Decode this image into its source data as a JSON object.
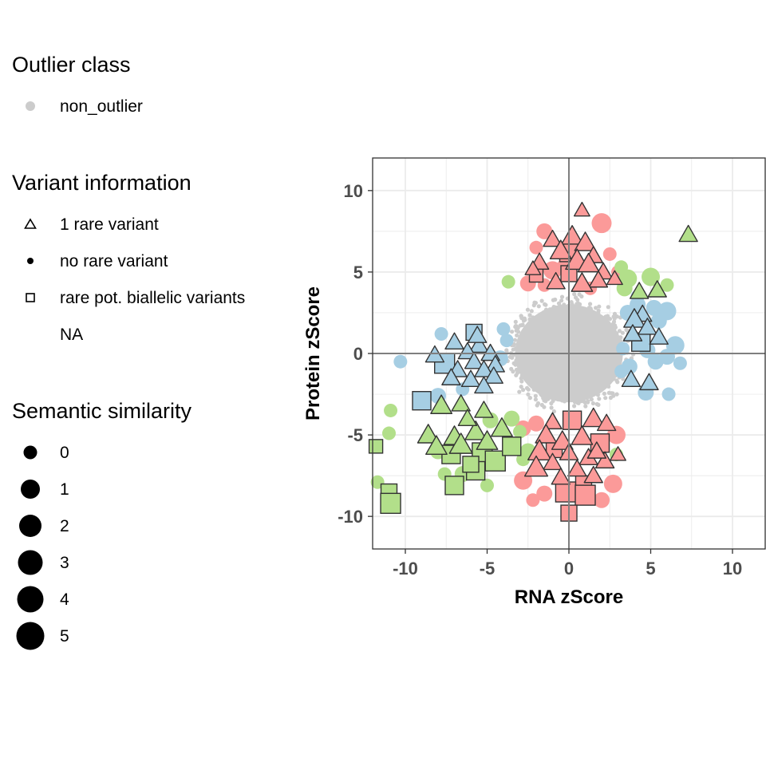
{
  "legend": {
    "outlier_class": {
      "title": "Outlier class",
      "items": [
        {
          "label": "non_outlier",
          "color": "#cccccc"
        }
      ]
    },
    "variant_info": {
      "title": "Variant information",
      "items": [
        {
          "label": "1 rare variant",
          "shape": "triangle"
        },
        {
          "label": "no rare variant",
          "shape": "dot"
        },
        {
          "label": "rare pot. biallelic variants",
          "shape": "square"
        },
        {
          "label": "NA",
          "shape": "none"
        }
      ]
    },
    "semantic_similarity": {
      "title": "Semantic similarity",
      "items": [
        {
          "label": "0",
          "size": 0
        },
        {
          "label": "1",
          "size": 1
        },
        {
          "label": "2",
          "size": 2
        },
        {
          "label": "3",
          "size": 3
        },
        {
          "label": "4",
          "size": 4
        },
        {
          "label": "5",
          "size": 5
        }
      ]
    }
  },
  "chart_data": {
    "type": "scatter",
    "xlabel": "RNA zScore",
    "ylabel": "Protein zScore",
    "xlim": [
      -12,
      12
    ],
    "ylim": [
      -12,
      12
    ],
    "x_ticks": [
      -10,
      -5,
      0,
      5,
      10
    ],
    "y_ticks": [
      -10,
      -5,
      0,
      5,
      10
    ],
    "x_tick_labels": [
      "-10",
      "-5",
      "0",
      "5",
      "10"
    ],
    "y_tick_labels": [
      "-10",
      "-5",
      "0",
      "5",
      "10"
    ],
    "grid": true,
    "reference_lines": {
      "x": 0,
      "y": 0
    },
    "colors": {
      "non_outlier": "#cccccc",
      "protein_outlier": "#fb9a99",
      "rna_outlier": "#a6cee3",
      "rna_protein_outlier": "#b2df8a",
      "outline": "#333333"
    },
    "series": [
      {
        "key": "protein_outlier",
        "points": [
          [
            0.8,
            8.8,
            "triangle",
            1
          ],
          [
            -1.5,
            7.5,
            "dot",
            2
          ],
          [
            2.0,
            8.0,
            "dot",
            4
          ],
          [
            -1.0,
            7.0,
            "triangle",
            2
          ],
          [
            0.2,
            7.2,
            "triangle",
            3
          ],
          [
            1.0,
            6.8,
            "triangle",
            3
          ],
          [
            -0.5,
            6.3,
            "triangle",
            3
          ],
          [
            0.0,
            6.2,
            "square",
            3
          ],
          [
            1.5,
            6.0,
            "triangle",
            2
          ],
          [
            -1.8,
            5.6,
            "triangle",
            2
          ],
          [
            0.5,
            5.7,
            "triangle",
            4
          ],
          [
            -2.2,
            5.2,
            "triangle",
            1
          ],
          [
            1.2,
            5.5,
            "triangle",
            3
          ],
          [
            2.1,
            5.0,
            "triangle",
            2
          ],
          [
            -1.0,
            5.1,
            "dot",
            3
          ],
          [
            -2.0,
            4.8,
            "square",
            1
          ],
          [
            0.0,
            4.9,
            "square",
            2
          ],
          [
            1.8,
            4.5,
            "triangle",
            2
          ],
          [
            -2.5,
            4.3,
            "dot",
            2
          ],
          [
            -0.8,
            4.4,
            "triangle",
            2
          ],
          [
            0.8,
            4.3,
            "triangle",
            3
          ],
          [
            2.8,
            4.6,
            "triangle",
            1
          ],
          [
            -1.5,
            4.2,
            "dot",
            1
          ],
          [
            1.3,
            4.0,
            "dot",
            1
          ],
          [
            -2.0,
            6.5,
            "dot",
            1
          ],
          [
            -0.3,
            5.4,
            "dot",
            1
          ],
          [
            2.5,
            6.1,
            "dot",
            1
          ],
          [
            3.0,
            5.0,
            "dot",
            1
          ],
          [
            -1.0,
            -4.2,
            "triangle",
            2
          ],
          [
            -2.0,
            -4.3,
            "dot",
            2
          ],
          [
            0.2,
            -4.1,
            "square",
            3
          ],
          [
            1.5,
            -4.0,
            "triangle",
            3
          ],
          [
            2.3,
            -4.3,
            "triangle",
            2
          ],
          [
            -2.8,
            -4.6,
            "dot",
            2
          ],
          [
            -1.4,
            -5.0,
            "triangle",
            3
          ],
          [
            0.8,
            -5.1,
            "triangle",
            3
          ],
          [
            -0.4,
            -5.4,
            "triangle",
            3
          ],
          [
            1.9,
            -5.5,
            "square",
            3
          ],
          [
            2.9,
            -5.0,
            "dot",
            3
          ],
          [
            -1.8,
            -6.0,
            "triangle",
            4
          ],
          [
            0.0,
            -6.1,
            "triangle",
            2
          ],
          [
            1.2,
            -6.4,
            "triangle",
            2
          ],
          [
            -1.0,
            -6.7,
            "triangle",
            2
          ],
          [
            2.2,
            -6.6,
            "triangle",
            2
          ],
          [
            -2.0,
            -7.0,
            "triangle",
            4
          ],
          [
            0.5,
            -7.1,
            "triangle",
            2
          ],
          [
            1.5,
            -7.5,
            "triangle",
            2
          ],
          [
            -0.5,
            -7.6,
            "triangle",
            2
          ],
          [
            -2.8,
            -7.8,
            "dot",
            3
          ],
          [
            0.9,
            -8.0,
            "square",
            2
          ],
          [
            -0.2,
            -8.5,
            "square",
            4
          ],
          [
            1.0,
            -8.7,
            "square",
            4
          ],
          [
            -1.5,
            -8.6,
            "dot",
            2
          ],
          [
            2.7,
            -8.0,
            "dot",
            3
          ],
          [
            0.0,
            -9.8,
            "square",
            2
          ],
          [
            -2.2,
            -9.0,
            "dot",
            1
          ],
          [
            2.0,
            -9.0,
            "dot",
            2
          ],
          [
            3.0,
            -6.2,
            "triangle",
            1
          ],
          [
            -0.9,
            -5.9,
            "square",
            2
          ],
          [
            1.7,
            -6.0,
            "triangle",
            2
          ]
        ]
      },
      {
        "key": "rna_outlier",
        "points": [
          [
            -7.0,
            0.7,
            "triangle",
            2
          ],
          [
            -5.5,
            0.5,
            "triangle",
            2
          ],
          [
            -8.2,
            -0.1,
            "triangle",
            2
          ],
          [
            -6.2,
            0.1,
            "triangle",
            2
          ],
          [
            -4.8,
            0.0,
            "triangle",
            2
          ],
          [
            -7.6,
            -0.6,
            "square",
            4
          ],
          [
            -5.8,
            -0.5,
            "triangle",
            2
          ],
          [
            -4.5,
            -0.7,
            "triangle",
            2
          ],
          [
            -6.8,
            -1.0,
            "triangle",
            2
          ],
          [
            -5.2,
            -1.0,
            "triangle",
            2
          ],
          [
            -7.2,
            -1.5,
            "triangle",
            2
          ],
          [
            -6.0,
            -1.6,
            "triangle",
            2
          ],
          [
            -4.6,
            -1.4,
            "triangle",
            2
          ],
          [
            -5.2,
            -2.0,
            "triangle",
            2
          ],
          [
            -6.5,
            -2.2,
            "dot",
            1
          ],
          [
            -9.0,
            -2.9,
            "square",
            3
          ],
          [
            -7.8,
            1.2,
            "dot",
            1
          ],
          [
            -4.0,
            1.5,
            "dot",
            1
          ],
          [
            -10.3,
            -0.5,
            "dot",
            1
          ],
          [
            -8.0,
            -2.6,
            "dot",
            2
          ],
          [
            -5.6,
            1.1,
            "triangle",
            2
          ],
          [
            -4.2,
            -0.3,
            "dot",
            2
          ],
          [
            -3.8,
            0.8,
            "dot",
            1
          ],
          [
            -5.8,
            1.3,
            "square",
            2
          ],
          [
            4.2,
            3.0,
            "dot",
            2
          ],
          [
            5.2,
            2.8,
            "dot",
            2
          ],
          [
            6.0,
            2.6,
            "dot",
            3
          ],
          [
            4.5,
            2.4,
            "triangle",
            2
          ],
          [
            3.6,
            2.5,
            "dot",
            2
          ],
          [
            5.5,
            2.0,
            "dot",
            2
          ],
          [
            4.0,
            2.1,
            "triangle",
            3
          ],
          [
            4.8,
            1.6,
            "triangle",
            2
          ],
          [
            3.9,
            1.2,
            "triangle",
            2
          ],
          [
            5.5,
            1.0,
            "triangle",
            2
          ],
          [
            4.4,
            0.7,
            "square",
            3
          ],
          [
            6.5,
            0.5,
            "dot",
            3
          ],
          [
            3.3,
            0.3,
            "dot",
            1
          ],
          [
            4.8,
            0.2,
            "dot",
            2
          ],
          [
            5.3,
            -0.5,
            "dot",
            2
          ],
          [
            6.0,
            -0.2,
            "dot",
            2
          ],
          [
            6.8,
            -0.6,
            "dot",
            1
          ],
          [
            3.8,
            -1.6,
            "triangle",
            2
          ],
          [
            4.9,
            -1.8,
            "triangle",
            2
          ],
          [
            4.7,
            -2.4,
            "dot",
            2
          ],
          [
            6.1,
            -2.5,
            "dot",
            1
          ],
          [
            3.2,
            -1.1,
            "dot",
            1
          ],
          [
            3.7,
            -0.8,
            "dot",
            2
          ],
          [
            4.2,
            3.5,
            "dot",
            1
          ]
        ]
      },
      {
        "key": "rna_protein_outlier",
        "points": [
          [
            7.3,
            7.3,
            "triangle",
            2
          ],
          [
            5.0,
            4.7,
            "dot",
            3
          ],
          [
            6.0,
            4.2,
            "dot",
            1
          ],
          [
            3.6,
            4.6,
            "dot",
            3
          ],
          [
            5.4,
            3.9,
            "triangle",
            2
          ],
          [
            4.3,
            3.8,
            "triangle",
            2
          ],
          [
            -3.7,
            4.4,
            "dot",
            1
          ],
          [
            3.2,
            5.3,
            "dot",
            1
          ],
          [
            -11.8,
            -5.7,
            "square",
            1
          ],
          [
            -11.0,
            -8.5,
            "square",
            2
          ],
          [
            -10.9,
            -9.2,
            "square",
            4
          ],
          [
            -11.7,
            -7.9,
            "dot",
            1
          ],
          [
            -10.9,
            -3.5,
            "dot",
            1
          ],
          [
            -11.0,
            -4.9,
            "dot",
            1
          ],
          [
            -8.6,
            -5.0,
            "triangle",
            3
          ],
          [
            -7.0,
            -5.1,
            "triangle",
            3
          ],
          [
            -5.7,
            -4.8,
            "triangle",
            3
          ],
          [
            -8.1,
            -5.7,
            "triangle",
            3
          ],
          [
            -6.6,
            -5.6,
            "triangle",
            4
          ],
          [
            -5.0,
            -5.4,
            "triangle",
            3
          ],
          [
            -4.1,
            -4.6,
            "triangle",
            3
          ],
          [
            -7.8,
            -3.2,
            "triangle",
            3
          ],
          [
            -6.6,
            -3.1,
            "triangle",
            2
          ],
          [
            -5.2,
            -3.5,
            "triangle",
            2
          ],
          [
            -7.2,
            -6.2,
            "square",
            3
          ],
          [
            -5.3,
            -6.1,
            "square",
            4
          ],
          [
            -4.5,
            -6.6,
            "square",
            4
          ],
          [
            -6.5,
            -7.4,
            "dot",
            2
          ],
          [
            -7.0,
            -8.1,
            "square",
            3
          ],
          [
            -5.7,
            -7.2,
            "square",
            3
          ],
          [
            -3.5,
            -5.7,
            "square",
            3
          ],
          [
            -6.0,
            -6.8,
            "square",
            2
          ],
          [
            -3.5,
            -4.0,
            "dot",
            2
          ],
          [
            -2.5,
            -6.0,
            "dot",
            2
          ],
          [
            -8.0,
            -6.0,
            "dot",
            2
          ],
          [
            -7.6,
            -7.4,
            "dot",
            1
          ],
          [
            -2.8,
            -6.5,
            "dot",
            1
          ],
          [
            -4.8,
            -4.1,
            "dot",
            2
          ],
          [
            -6.2,
            -4.0,
            "triangle",
            2
          ],
          [
            -3.0,
            -4.8,
            "dot",
            1
          ],
          [
            2.9,
            -6.2,
            "dot",
            1
          ],
          [
            -5.0,
            -8.1,
            "dot",
            1
          ],
          [
            3.4,
            4.0,
            "dot",
            2
          ]
        ]
      }
    ]
  }
}
